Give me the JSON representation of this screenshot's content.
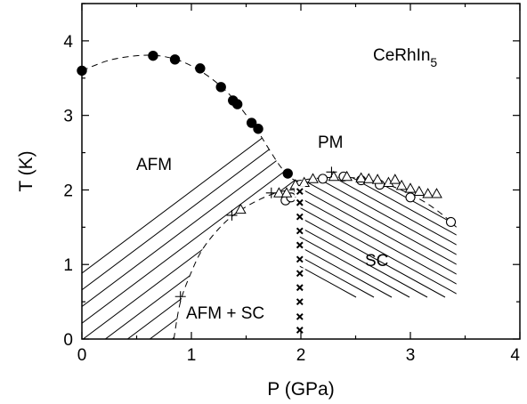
{
  "chart_data": {
    "type": "scatter",
    "xlabel": "P (GPa)",
    "ylabel": "T (K)",
    "xlim": [
      0,
      4
    ],
    "ylim": [
      0,
      4.5
    ],
    "x_ticks": [
      "0",
      "1",
      "2",
      "3",
      "4"
    ],
    "y_ticks": [
      "0",
      "1",
      "2",
      "3",
      "4"
    ],
    "compound": {
      "base": "CeRhIn",
      "sub": "5"
    },
    "region_labels": {
      "afm": "AFM",
      "pm": "PM",
      "sc": "SC",
      "afm_sc": "AFM + SC"
    },
    "series": [
      {
        "marker": "filled-circle",
        "x": [
          0.0,
          0.65,
          0.85,
          1.08,
          1.27,
          1.38,
          1.42,
          1.55,
          1.61,
          1.88
        ],
        "y": [
          3.6,
          3.8,
          3.75,
          3.63,
          3.38,
          3.2,
          3.15,
          2.9,
          2.82,
          2.22
        ]
      },
      {
        "marker": "open-circle",
        "x": [
          1.86,
          1.91,
          1.98,
          2.2,
          2.39,
          2.55,
          2.72,
          3.0,
          3.37
        ],
        "y": [
          1.86,
          1.9,
          2.0,
          2.15,
          2.18,
          2.13,
          2.07,
          1.9,
          1.57
        ]
      },
      {
        "marker": "open-triangle",
        "x": [
          1.45,
          1.8,
          1.87,
          1.95,
          2.03,
          2.11,
          2.3,
          2.42,
          2.55,
          2.62,
          2.7,
          2.8,
          2.86,
          2.92,
          3.0,
          3.08,
          3.16,
          3.24
        ],
        "y": [
          1.74,
          1.96,
          1.96,
          2.07,
          2.1,
          2.15,
          2.18,
          2.18,
          2.16,
          2.15,
          2.14,
          2.1,
          2.14,
          2.06,
          2.02,
          1.98,
          1.95,
          1.95
        ]
      },
      {
        "marker": "plus",
        "x": [
          0.9,
          1.37,
          1.73,
          2.28
        ],
        "y": [
          0.57,
          1.66,
          1.96,
          2.24
        ]
      },
      {
        "marker": "x",
        "x": [
          1.99,
          1.99,
          1.99,
          1.99,
          1.99,
          1.99,
          1.99,
          1.99,
          1.99,
          1.99,
          1.99
        ],
        "y": [
          0.12,
          0.3,
          0.5,
          0.69,
          0.88,
          1.07,
          1.26,
          1.45,
          1.64,
          1.83,
          1.98
        ]
      }
    ],
    "guide_lines": [
      {
        "name": "afm-boundary",
        "style": "dashed",
        "x": [
          0.0,
          0.25,
          0.5,
          0.7,
          0.9,
          1.1,
          1.3,
          1.45,
          1.6,
          1.72,
          1.82,
          1.92,
          2.0
        ],
        "y": [
          3.6,
          3.74,
          3.8,
          3.8,
          3.73,
          3.58,
          3.35,
          3.1,
          2.8,
          2.52,
          2.3,
          2.15,
          2.1
        ]
      },
      {
        "name": "sc-boundary",
        "style": "dashed",
        "x": [
          1.95,
          2.1,
          2.3,
          2.5,
          2.7,
          2.85,
          3.0,
          3.15,
          3.3,
          3.42
        ],
        "y": [
          2.12,
          2.15,
          2.17,
          2.16,
          2.11,
          2.04,
          1.94,
          1.82,
          1.66,
          1.5
        ]
      },
      {
        "name": "afm-sc-boundary",
        "style": "dashed",
        "x": [
          0.84,
          0.9,
          1.0,
          1.1,
          1.25,
          1.4,
          1.58,
          1.75,
          1.9,
          2.0
        ],
        "y": [
          0.0,
          0.5,
          0.9,
          1.2,
          1.48,
          1.68,
          1.84,
          1.95,
          2.0,
          2.0
        ]
      }
    ]
  }
}
